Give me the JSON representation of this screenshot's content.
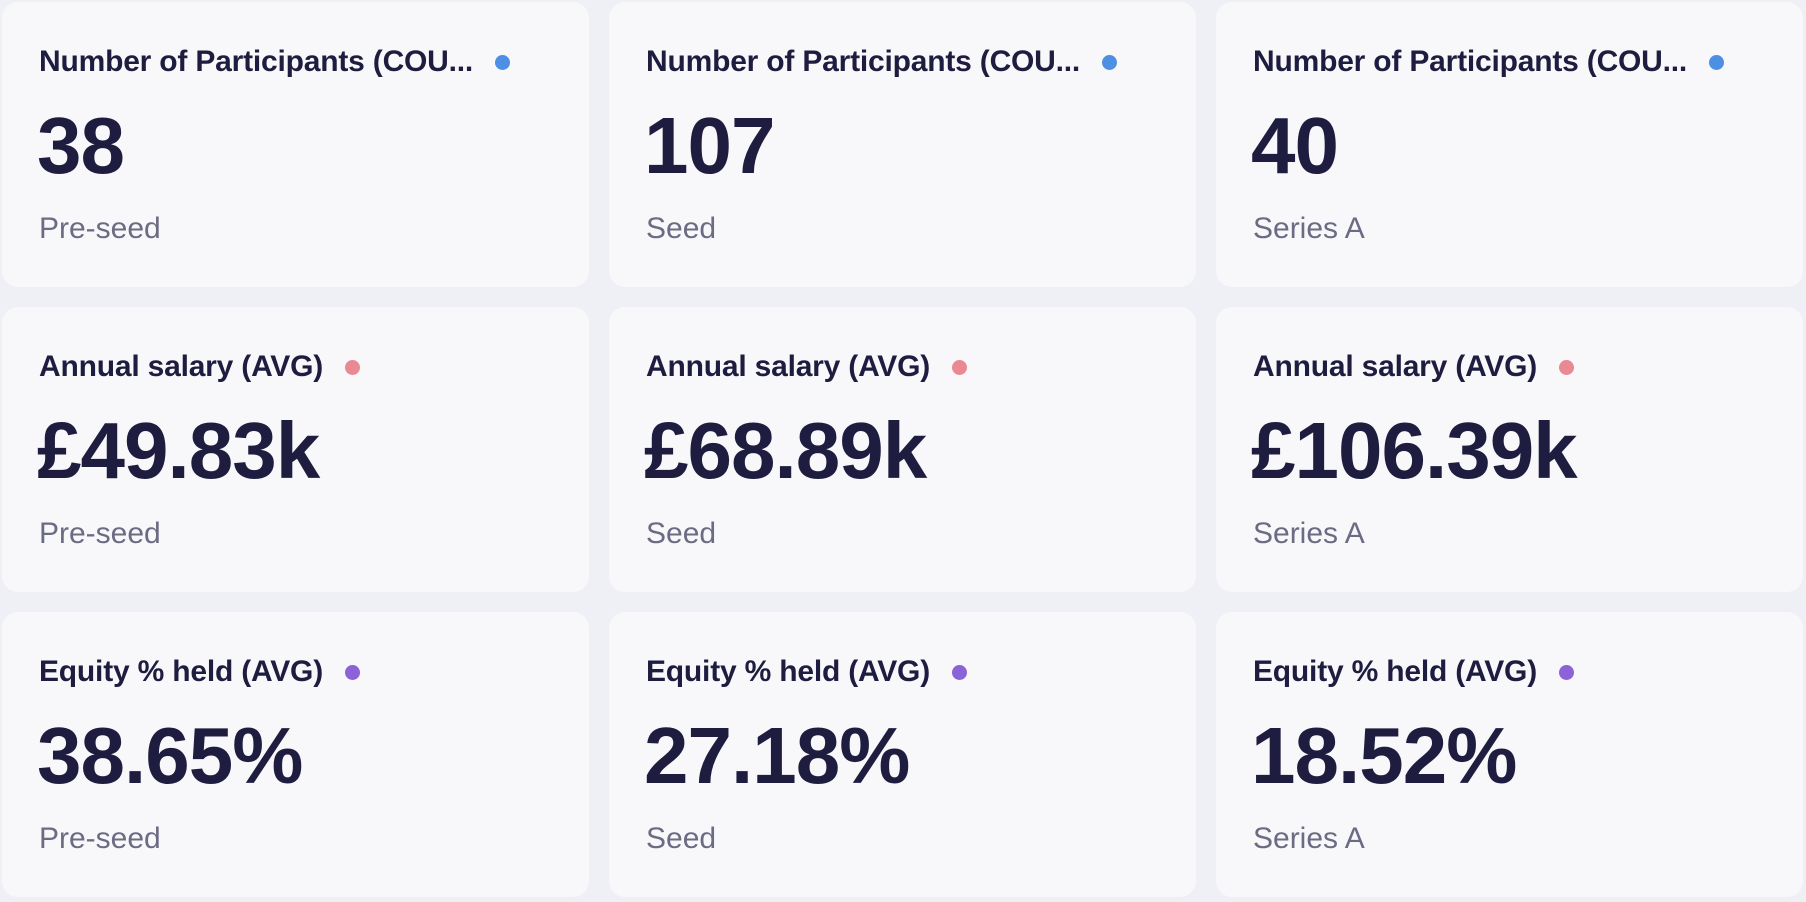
{
  "colors": {
    "participants_dot": "#4d8fe3",
    "salary_dot": "#ea8893",
    "equity_dot": "#8a63d6"
  },
  "cards": [
    {
      "title": "Number of Participants (COU...",
      "value": "38",
      "subtitle": "Pre-seed",
      "dot": "participants_dot"
    },
    {
      "title": "Number of Participants (COU...",
      "value": "107",
      "subtitle": "Seed",
      "dot": "participants_dot"
    },
    {
      "title": "Number of Participants (COU...",
      "value": "40",
      "subtitle": "Series A",
      "dot": "participants_dot"
    },
    {
      "title": "Annual salary (AVG)",
      "value": "£49.83k",
      "subtitle": "Pre-seed",
      "dot": "salary_dot"
    },
    {
      "title": "Annual salary (AVG)",
      "value": "£68.89k",
      "subtitle": "Seed",
      "dot": "salary_dot"
    },
    {
      "title": "Annual salary (AVG)",
      "value": "£106.39k",
      "subtitle": "Series A",
      "dot": "salary_dot"
    },
    {
      "title": "Equity % held (AVG)",
      "value": "38.65%",
      "subtitle": "Pre-seed",
      "dot": "equity_dot"
    },
    {
      "title": "Equity % held (AVG)",
      "value": "27.18%",
      "subtitle": "Seed",
      "dot": "equity_dot"
    },
    {
      "title": "Equity % held (AVG)",
      "value": "18.52%",
      "subtitle": "Series A",
      "dot": "equity_dot"
    }
  ]
}
